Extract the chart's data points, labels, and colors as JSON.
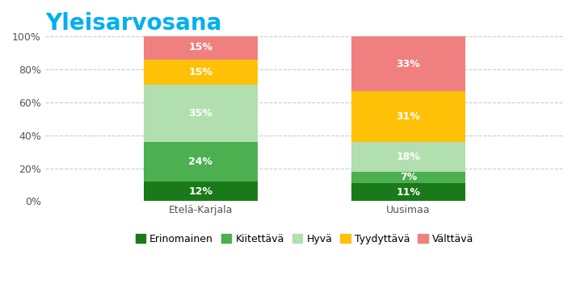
{
  "title": "Yleisarvosana",
  "title_color": "#00b0f0",
  "categories": [
    "Etelä-Karjala",
    "Uusimaa"
  ],
  "segments": [
    {
      "label": "Erinomainen",
      "color": "#1a7a1a",
      "values": [
        12,
        11
      ]
    },
    {
      "label": "Kiitettävä",
      "color": "#4caf50",
      "values": [
        24,
        7
      ]
    },
    {
      "label": "Hyvä",
      "color": "#b2dfb0",
      "values": [
        35,
        18
      ]
    },
    {
      "label": "Tyydyttävä",
      "color": "#ffc107",
      "values": [
        15,
        31
      ]
    },
    {
      "label": "Välttävä",
      "color": "#f08080",
      "values": [
        15,
        33
      ]
    }
  ],
  "bar_width": 0.22,
  "bar_positions": [
    0.3,
    0.7
  ],
  "xlim": [
    0.0,
    1.0
  ],
  "ylim": [
    0,
    100
  ],
  "yticks": [
    0,
    20,
    40,
    60,
    80,
    100
  ],
  "ytick_labels": [
    "0%",
    "20%",
    "40%",
    "60%",
    "80%",
    "100%"
  ],
  "background_color": "#ffffff",
  "grid_color": "#cccccc",
  "label_color": "#ffffff",
  "label_fontsize": 9,
  "title_fontsize": 20,
  "xlabel_fontsize": 9,
  "legend_fontsize": 9
}
